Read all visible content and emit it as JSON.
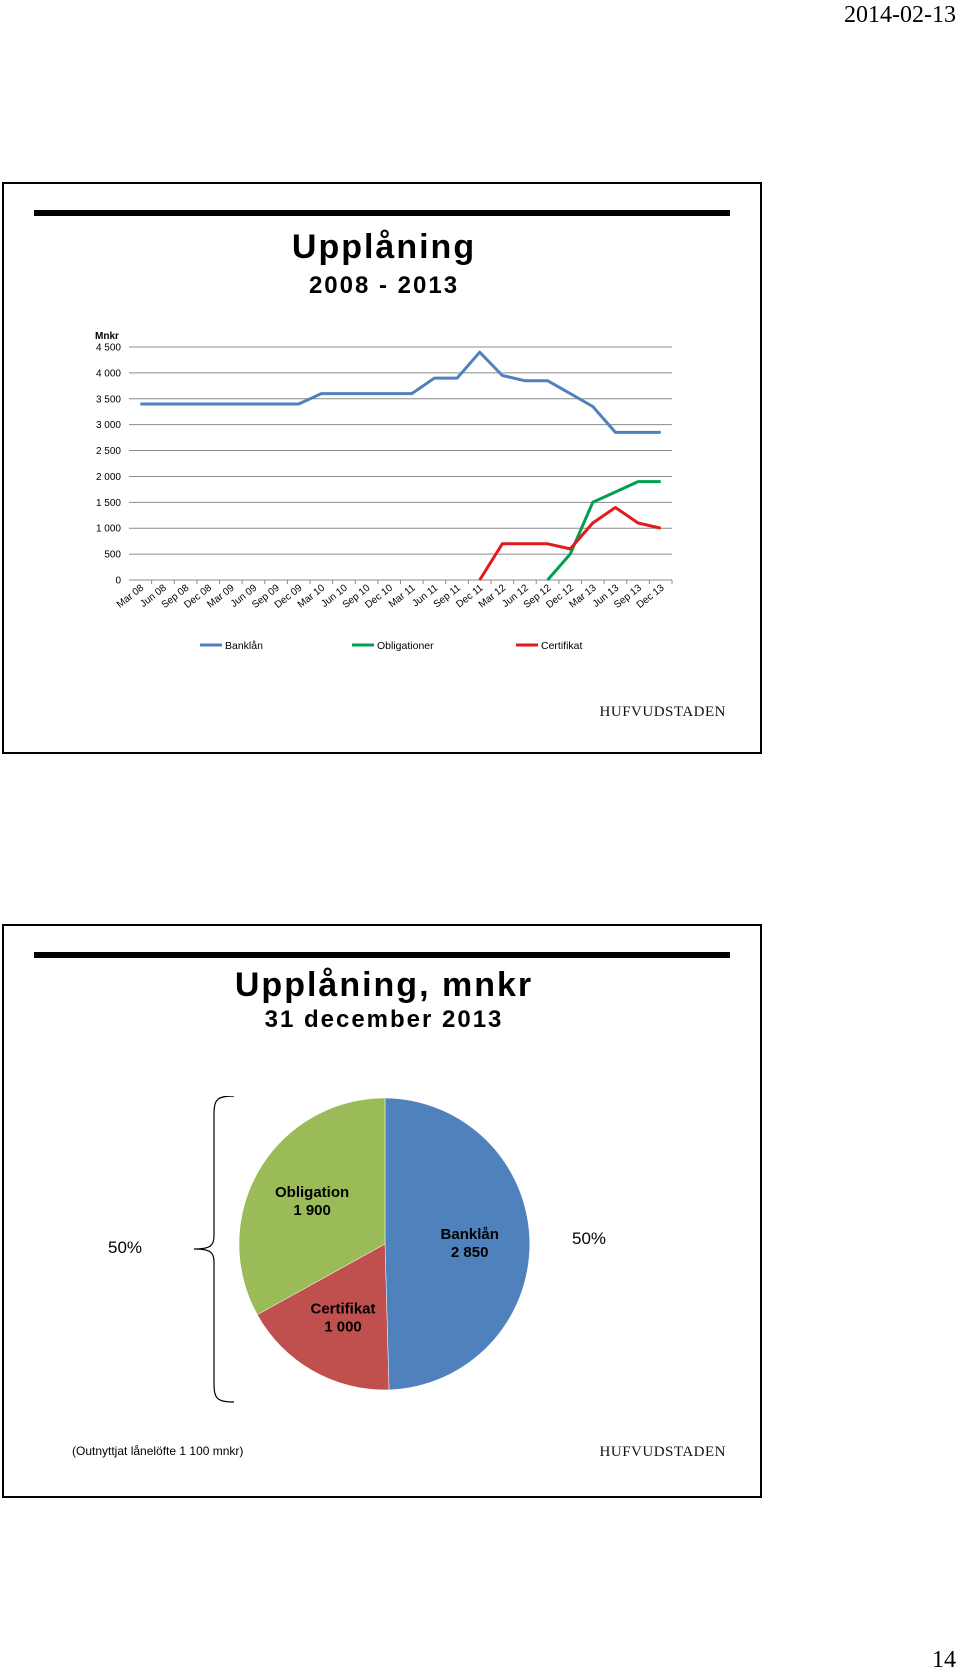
{
  "header": {
    "date": "2014-02-13"
  },
  "footer": {
    "page_number": "14"
  },
  "slide1": {
    "title": "Upplåning",
    "subtitle": "2008 - 2013",
    "brand": "HUFVUDSTADEN"
  },
  "slide2": {
    "title": "Upplåning, mnkr",
    "subtitle": "31 december 2013",
    "left_pct": "50%",
    "right_pct": "50%",
    "footnote": "(Outnyttjat lånelöfte 1 100 mnkr)",
    "brand": "HUFVUDSTADEN"
  },
  "chart_data": [
    {
      "type": "line",
      "ylabel": "Mnkr",
      "ylim": [
        0,
        4500
      ],
      "yticks": [
        0,
        500,
        1000,
        1500,
        2000,
        2500,
        3000,
        3500,
        4000,
        4500
      ],
      "ytick_labels": [
        "0",
        "500",
        "1 000",
        "1 500",
        "2 000",
        "2 500",
        "3 000",
        "3 500",
        "4 000",
        "4 500"
      ],
      "grid": true,
      "legend": "bottom",
      "categories": [
        "Mar 08",
        "Jun 08",
        "Sep 08",
        "Dec 08",
        "Mar 09",
        "Jun 09",
        "Sep 09",
        "Dec 09",
        "Mar 10",
        "Jun 10",
        "Sep 10",
        "Dec 10",
        "Mar 11",
        "Jun 11",
        "Sep 11",
        "Dec 11",
        "Mar 12",
        "Jun 12",
        "Sep 12",
        "Dec 12",
        "Mar 13",
        "Jun 13",
        "Sep 13",
        "Dec 13"
      ],
      "series": [
        {
          "name": "Banklån",
          "color": "#4f81bd",
          "values": [
            3400,
            3400,
            3400,
            3400,
            3400,
            3400,
            3400,
            3400,
            3600,
            3600,
            3600,
            3600,
            3600,
            3900,
            3900,
            4400,
            3950,
            3850,
            3850,
            3600,
            3350,
            2850,
            2850,
            2850
          ]
        },
        {
          "name": "Obligationer",
          "color": "#00a050",
          "values": [
            null,
            null,
            null,
            null,
            null,
            null,
            null,
            null,
            null,
            null,
            null,
            null,
            null,
            null,
            null,
            null,
            null,
            null,
            0,
            500,
            1500,
            1700,
            1900,
            1900
          ]
        },
        {
          "name": "Certifikat",
          "color": "#e31a1c",
          "values": [
            null,
            null,
            null,
            null,
            null,
            null,
            null,
            null,
            null,
            null,
            null,
            null,
            null,
            null,
            null,
            0,
            700,
            700,
            700,
            600,
            1100,
            1400,
            1100,
            1000
          ]
        }
      ]
    },
    {
      "type": "pie",
      "slices": [
        {
          "name": "Banklån",
          "label": "Banklån",
          "value_label": "2 850",
          "value": 2850,
          "color": "#4f81bd"
        },
        {
          "name": "Certifikat",
          "label": "Certifikat",
          "value_label": "1 000",
          "value": 1000,
          "color": "#c0504d"
        },
        {
          "name": "Obligation",
          "label": "Obligation",
          "value_label": "1 900",
          "value": 1900,
          "color": "#9bbb59"
        }
      ]
    }
  ]
}
